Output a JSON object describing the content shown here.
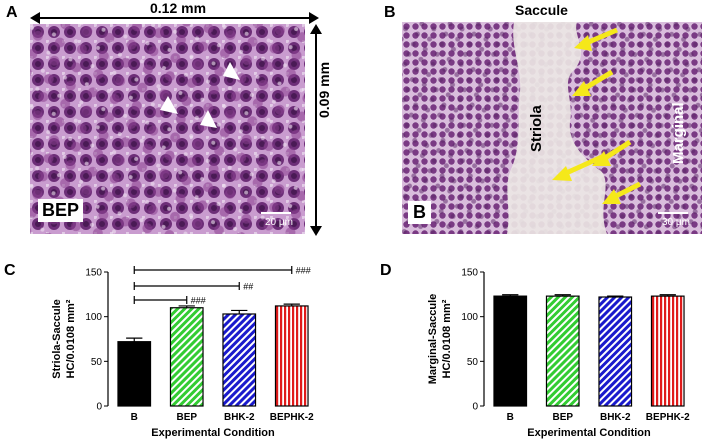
{
  "panels": {
    "a": {
      "letter": "A",
      "width_label": "0.12 mm",
      "height_label": "0.09 mm",
      "condition_label": "BEP",
      "scale_bar_label": "20 μm"
    },
    "b": {
      "letter": "B",
      "title": "Saccule",
      "striola_label": "Striola",
      "marginal_label": "Marginal",
      "condition_label": "B",
      "scale_bar_label": "30 μm"
    }
  },
  "colors": {
    "bar_b": "#000000",
    "bar_bep": "#33cc33",
    "bar_bhk2": "#1a1acc",
    "bar_bephk2": "#e01a1a",
    "tissue_purple": "#8a3f8f",
    "arrow_yellow": "#f5e81a",
    "arrowhead_white": "#ffffff"
  },
  "chart_data": [
    {
      "panel": "C",
      "type": "bar",
      "ylabel_line1": "Striola-Saccule",
      "ylabel_line2": "HC/0.0108 mm²",
      "xlabel": "Experimental Condition",
      "ylim": [
        0,
        150
      ],
      "yticks": [
        0,
        50,
        100,
        150
      ],
      "categories": [
        "B",
        "BEP",
        "BHK-2",
        "BEPHK-2"
      ],
      "values": [
        72,
        110,
        103,
        112
      ],
      "errors": [
        4,
        2,
        4,
        2
      ],
      "patterns": [
        "solid",
        "diagonal",
        "diagonal",
        "vertical"
      ],
      "significance": [
        {
          "from": 0,
          "to": 1,
          "label": "###"
        },
        {
          "from": 0,
          "to": 2,
          "label": "##"
        },
        {
          "from": 0,
          "to": 3,
          "label": "###"
        }
      ]
    },
    {
      "panel": "D",
      "type": "bar",
      "ylabel_line1": "Marginal-Saccule",
      "ylabel_line2": "HC/0.0108 mm²",
      "xlabel": "Experimental Condition",
      "ylim": [
        0,
        150
      ],
      "yticks": [
        0,
        50,
        100,
        150
      ],
      "categories": [
        "B",
        "BEP",
        "BHK-2",
        "BEPHK-2"
      ],
      "values": [
        123,
        123,
        122,
        123
      ],
      "errors": [
        1.5,
        1.5,
        1,
        1.5
      ],
      "patterns": [
        "solid",
        "diagonal",
        "diagonal",
        "vertical"
      ],
      "significance": []
    }
  ]
}
